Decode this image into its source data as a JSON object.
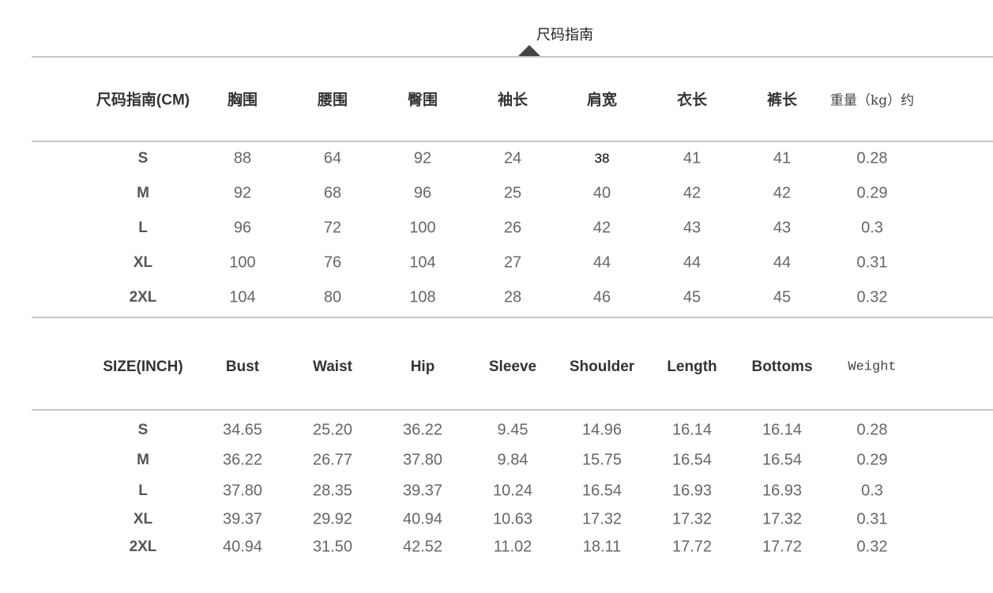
{
  "title": "尺码指南",
  "cm_table": {
    "headers": [
      "尺码指南(CM)",
      "胸围",
      "腰围",
      "臀围",
      "袖长",
      "肩宽",
      "衣长",
      "裤长",
      "重量（kg）约"
    ],
    "rows": [
      [
        "S",
        "88",
        "64",
        "92",
        "24",
        "38",
        "41",
        "41",
        "0.28"
      ],
      [
        "M",
        "92",
        "68",
        "96",
        "25",
        "40",
        "42",
        "42",
        "0.29"
      ],
      [
        "L",
        "96",
        "72",
        "100",
        "26",
        "42",
        "43",
        "43",
        "0.3"
      ],
      [
        "XL",
        "100",
        "76",
        "104",
        "27",
        "44",
        "44",
        "44",
        "0.31"
      ],
      [
        "2XL",
        "104",
        "80",
        "108",
        "28",
        "46",
        "45",
        "45",
        "0.32"
      ]
    ]
  },
  "inch_table": {
    "headers": [
      "SIZE(INCH)",
      "Bust",
      "Waist",
      "Hip",
      "Sleeve",
      "Shoulder",
      "Length",
      "Bottoms",
      "Weight"
    ],
    "rows": [
      [
        "S",
        "34.65",
        "25.20",
        "36.22",
        "9.45",
        "14.96",
        "16.14",
        "16.14",
        "0.28"
      ],
      [
        "M",
        "36.22",
        "26.77",
        "37.80",
        "9.84",
        "15.75",
        "16.54",
        "16.54",
        "0.29"
      ],
      [
        "L",
        "37.80",
        "28.35",
        "39.37",
        "10.24",
        "16.54",
        "16.93",
        "16.93",
        "0.3"
      ],
      [
        "XL",
        "39.37",
        "29.92",
        "40.94",
        "10.63",
        "17.32",
        "17.32",
        "17.32",
        "0.31"
      ],
      [
        "2XL",
        "40.94",
        "31.50",
        "42.52",
        "11.02",
        "18.11",
        "17.72",
        "17.72",
        "0.32"
      ]
    ]
  }
}
